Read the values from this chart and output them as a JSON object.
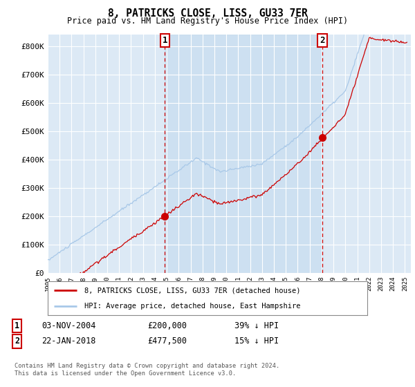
{
  "title": "8, PATRICKS CLOSE, LISS, GU33 7ER",
  "subtitle": "Price paid vs. HM Land Registry's House Price Index (HPI)",
  "ylabel_ticks": [
    "£0",
    "£100K",
    "£200K",
    "£300K",
    "£400K",
    "£500K",
    "£600K",
    "£700K",
    "£800K"
  ],
  "ytick_values": [
    0,
    100000,
    200000,
    300000,
    400000,
    500000,
    600000,
    700000,
    800000
  ],
  "ylim": [
    0,
    840000
  ],
  "xlim_start": 1995.0,
  "xlim_end": 2025.5,
  "hpi_color": "#a8c8e8",
  "price_color": "#cc0000",
  "marker1_date": 2004.84,
  "marker1_value": 200000,
  "marker2_date": 2018.05,
  "marker2_value": 477500,
  "sale1_date_str": "03-NOV-2004",
  "sale1_price_str": "£200,000",
  "sale1_hpi_str": "39% ↓ HPI",
  "sale2_date_str": "22-JAN-2018",
  "sale2_price_str": "£477,500",
  "sale2_hpi_str": "15% ↓ HPI",
  "legend_label1": "8, PATRICKS CLOSE, LISS, GU33 7ER (detached house)",
  "legend_label2": "HPI: Average price, detached house, East Hampshire",
  "footer": "Contains HM Land Registry data © Crown copyright and database right 2024.\nThis data is licensed under the Open Government Licence v3.0.",
  "plot_bg_color": "#dce9f5",
  "shade_color": "#c8ddf0",
  "fig_bg_color": "#ffffff",
  "grid_color": "#ffffff",
  "xtick_years": [
    1995,
    1996,
    1997,
    1998,
    1999,
    2000,
    2001,
    2002,
    2003,
    2004,
    2005,
    2006,
    2007,
    2008,
    2009,
    2010,
    2011,
    2012,
    2013,
    2014,
    2015,
    2016,
    2017,
    2018,
    2019,
    2020,
    2021,
    2022,
    2023,
    2024,
    2025
  ],
  "hpi_seed": 10,
  "prop_seed": 20
}
